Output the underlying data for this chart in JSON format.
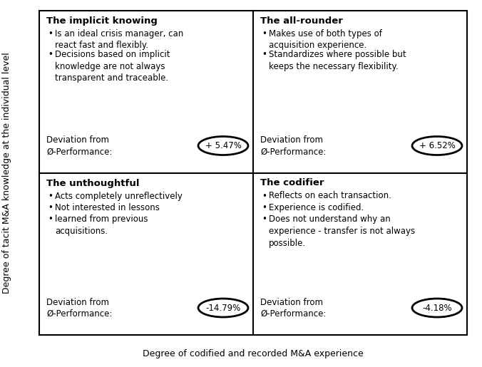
{
  "quadrants": [
    {
      "title": "The implicit knowing",
      "bullets": [
        "Is an ideal crisis manager, can\nreact fast and flexibly.",
        "Decisions based on implicit\nknowledge are not always\ntransparent and traceable."
      ],
      "deviation_label": "Deviation from\nØ-Performance:",
      "deviation_value": "+ 5.47%",
      "position": "top-left"
    },
    {
      "title": "The all-rounder",
      "bullets": [
        "Makes use of both types of\nacquisition experience.",
        "Standardizes where possible but\nkeeps the necessary flexibility."
      ],
      "deviation_label": "Deviation from\nØ-Performance:",
      "deviation_value": "+ 6.52%",
      "position": "top-right"
    },
    {
      "title": "The unthoughtful",
      "bullets": [
        "Acts completely unreflectively",
        "Not interested in lessons",
        "learned from previous\nacquisitions."
      ],
      "deviation_label": "Deviation from\nØ-Performance:",
      "deviation_value": "-14.79%",
      "position": "bottom-left"
    },
    {
      "title": "The codifier",
      "bullets": [
        "Reflects on each transaction.",
        "Experience is codified.",
        "Does not understand why an\nexperience - transfer is not always\npossible."
      ],
      "deviation_label": "Deviation from\nØ-Performance:",
      "deviation_value": "-4.18%",
      "position": "bottom-right"
    }
  ],
  "xlabel": "Degree of codified and recorded M&A experience",
  "ylabel": "Degree of tacit M&A knowledge at the individual level",
  "bg_color": "#ffffff",
  "text_color": "#000000",
  "title_fontsize": 9.5,
  "body_fontsize": 8.5,
  "label_fontsize": 8.5,
  "axis_label_fontsize": 9.0
}
